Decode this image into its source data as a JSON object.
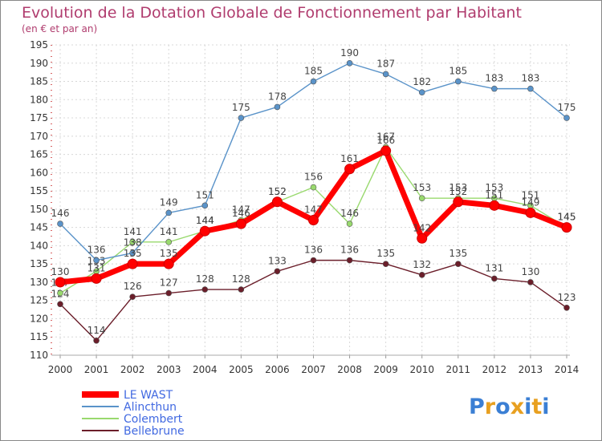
{
  "chart_data": {
    "type": "line",
    "title": "Evolution de la Dotation Globale de Fonctionnement par Habitant",
    "subtitle": "(en € et par an)",
    "xlabel": "",
    "ylabel": "",
    "ylim": [
      110,
      195
    ],
    "ytick_step": 5,
    "grid": true,
    "legend_position": "bottom-left",
    "x": [
      "2000",
      "2001",
      "2002",
      "2003",
      "2004",
      "2005",
      "2006",
      "2007",
      "2008",
      "2009",
      "2010",
      "2011",
      "2012",
      "2013",
      "2014"
    ],
    "series": [
      {
        "name": "Bellebrune",
        "color": "#6b1e2a",
        "values": [
          124,
          114,
          126,
          127,
          128,
          128,
          133,
          136,
          136,
          135,
          132,
          135,
          131,
          130,
          123
        ]
      },
      {
        "name": "Colembert",
        "color": "#99d96e",
        "values": [
          127,
          133,
          141,
          141,
          144,
          147,
          152,
          156,
          146,
          167,
          153,
          153,
          153,
          151,
          145
        ]
      },
      {
        "name": "Alincthun",
        "color": "#5a93c9",
        "values": [
          146,
          136,
          138,
          149,
          151,
          175,
          178,
          185,
          190,
          187,
          182,
          185,
          183,
          183,
          175
        ]
      },
      {
        "name": "LE WAST",
        "color": "#ff0000",
        "values": [
          130,
          131,
          135,
          135,
          144,
          146,
          152,
          147,
          161,
          166,
          142,
          152,
          151,
          149,
          145
        ]
      }
    ]
  },
  "logo": {
    "text": "Proxiti",
    "letters": [
      "P",
      "r",
      "o",
      "x",
      "i",
      "t",
      "i"
    ],
    "colors": [
      "#3b7fd4",
      "#e8a020",
      "#3b7fd4",
      "#e8a020",
      "#3b7fd4",
      "#e8a020",
      "#3b7fd4"
    ]
  }
}
